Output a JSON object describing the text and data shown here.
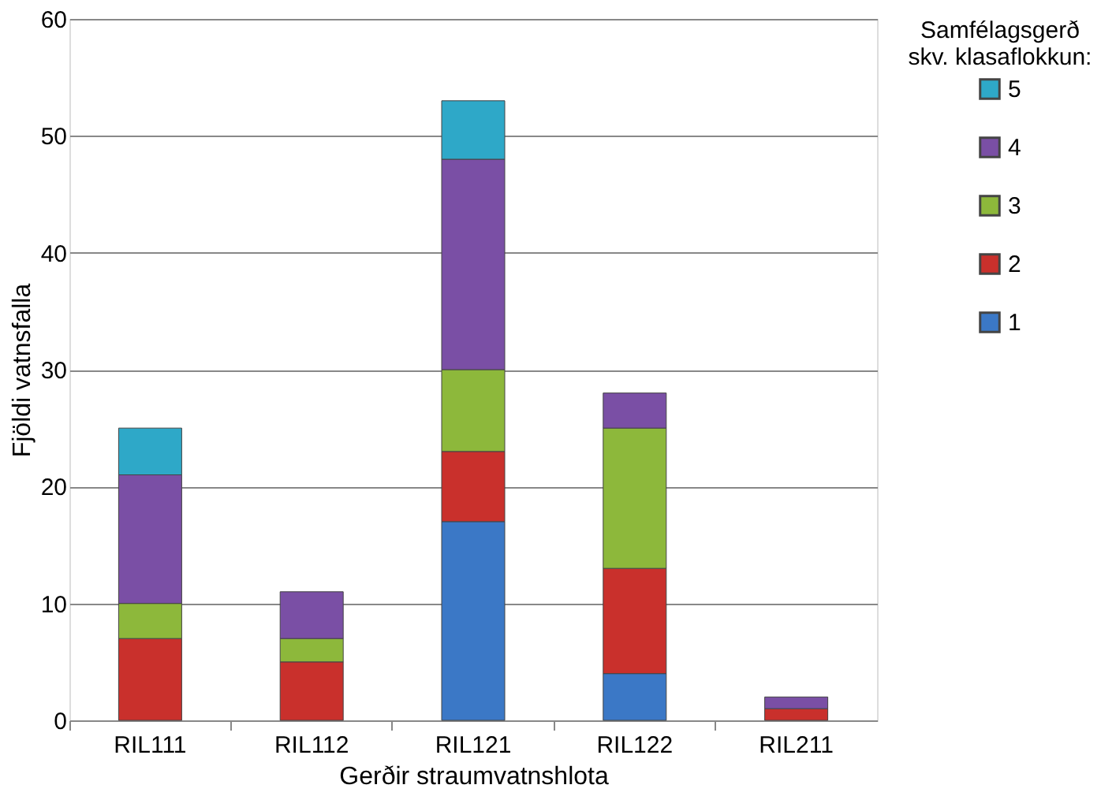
{
  "chart_data": {
    "type": "bar",
    "stacked": true,
    "xlabel": "Gerðir straumvatnshlota",
    "ylabel": "Fjöldi vatnsfalla",
    "legend_title": "Samfélagsgerð\nskv. klasaflokkun:",
    "categories": [
      "RIL111",
      "RIL112",
      "RIL121",
      "RIL122",
      "RIL211"
    ],
    "series": [
      {
        "name": "1",
        "color": "#3b78c6",
        "values": [
          0,
          0,
          17,
          4,
          0
        ]
      },
      {
        "name": "2",
        "color": "#c9302c",
        "values": [
          7,
          5,
          6,
          9,
          1
        ]
      },
      {
        "name": "3",
        "color": "#8db83b",
        "values": [
          3,
          2,
          7,
          12,
          0
        ]
      },
      {
        "name": "4",
        "color": "#7a4fa5",
        "values": [
          11,
          4,
          18,
          3,
          1
        ]
      },
      {
        "name": "5",
        "color": "#2ea8c8",
        "values": [
          4,
          0,
          5,
          0,
          0
        ]
      }
    ],
    "ylim": [
      0,
      60
    ],
    "yticks": [
      0,
      10,
      20,
      30,
      40,
      50,
      60
    ],
    "grid": "y",
    "legend": "right"
  }
}
